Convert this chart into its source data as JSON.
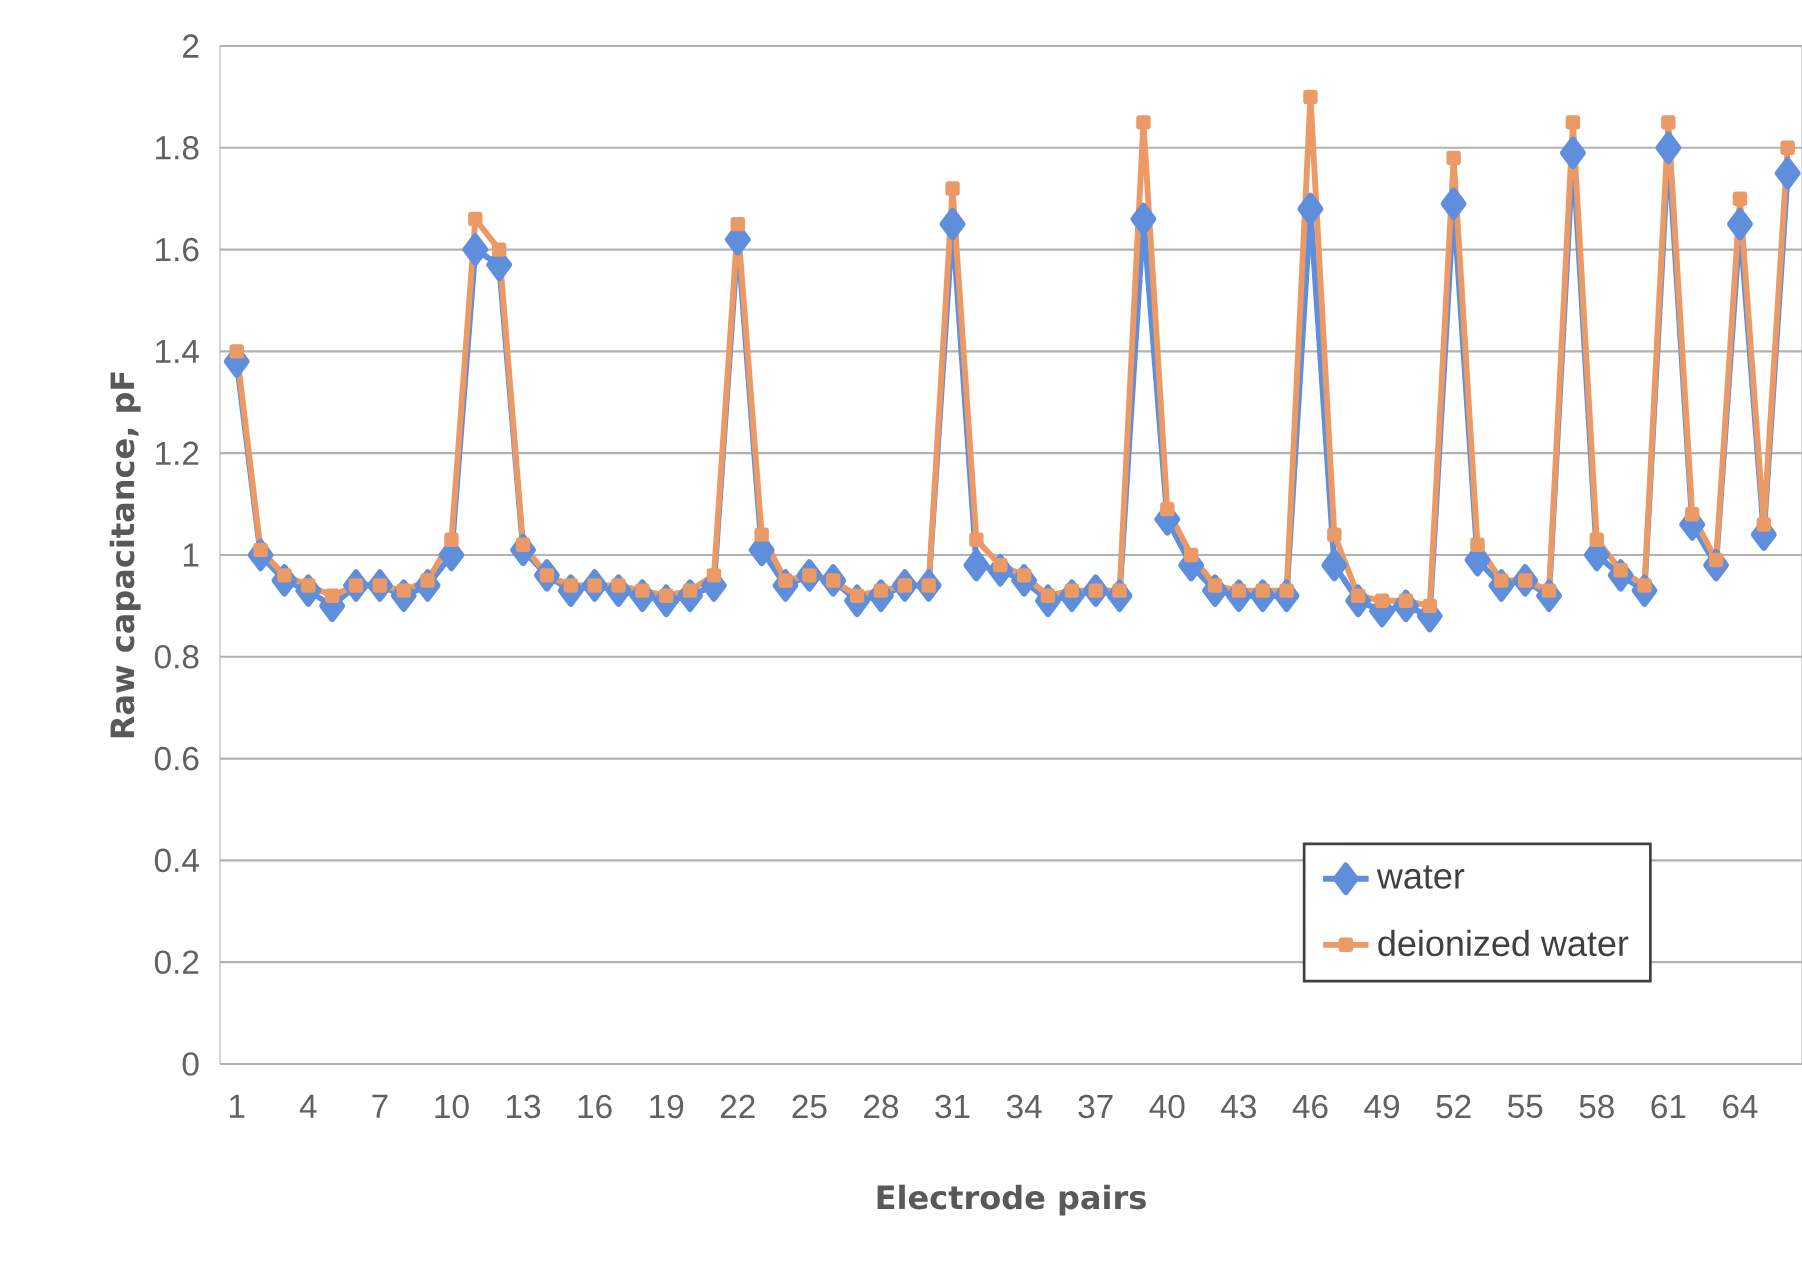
{
  "chart_data": {
    "type": "line",
    "xlabel": "Electrode pairs",
    "ylabel": "Raw capacitance, pF",
    "categories": [
      "1",
      null,
      null,
      "4",
      null,
      null,
      "7",
      null,
      null,
      "10",
      null,
      null,
      "13",
      null,
      null,
      "16",
      null,
      null,
      "19",
      null,
      null,
      "22",
      null,
      null,
      "25",
      null,
      null,
      "28",
      null,
      null,
      "31",
      null,
      null,
      "34",
      null,
      null,
      "37",
      null,
      null,
      "40",
      null,
      null,
      "43",
      null,
      null,
      "46",
      null,
      null,
      "49",
      null,
      null,
      "52",
      null,
      null,
      "55",
      null,
      null,
      "58",
      null,
      null,
      "61",
      null,
      null,
      "64",
      null,
      null
    ],
    "series": [
      {
        "name": "water",
        "color": "#5f8fdc",
        "marker": "diamond",
        "values": [
          1.38,
          1.0,
          0.95,
          0.93,
          0.9,
          0.94,
          0.94,
          0.92,
          0.94,
          1.0,
          1.6,
          1.57,
          1.01,
          0.96,
          0.93,
          0.94,
          0.93,
          0.92,
          0.91,
          0.92,
          0.94,
          1.62,
          1.01,
          0.94,
          0.96,
          0.95,
          0.91,
          0.92,
          0.94,
          0.94,
          1.65,
          0.98,
          0.97,
          0.95,
          0.91,
          0.92,
          0.93,
          0.92,
          1.66,
          1.07,
          0.98,
          0.93,
          0.92,
          0.92,
          0.92,
          1.68,
          0.98,
          0.91,
          0.89,
          0.9,
          0.88,
          1.69,
          0.99,
          0.94,
          0.95,
          0.92,
          1.79,
          1.0,
          0.96,
          0.93,
          1.8,
          1.06,
          0.98,
          1.65,
          1.04,
          1.75
        ]
      },
      {
        "name": "deionized water",
        "color": "#eb9a66",
        "marker": "square",
        "values": [
          1.4,
          1.01,
          0.96,
          0.94,
          0.92,
          0.94,
          0.94,
          0.93,
          0.95,
          1.03,
          1.66,
          1.6,
          1.02,
          0.96,
          0.94,
          0.94,
          0.94,
          0.93,
          0.92,
          0.93,
          0.96,
          1.65,
          1.04,
          0.95,
          0.96,
          0.95,
          0.92,
          0.93,
          0.94,
          0.94,
          1.72,
          1.03,
          0.98,
          0.96,
          0.92,
          0.93,
          0.93,
          0.93,
          1.85,
          1.09,
          1.0,
          0.94,
          0.93,
          0.93,
          0.93,
          1.9,
          1.04,
          0.92,
          0.91,
          0.91,
          0.9,
          1.78,
          1.02,
          0.95,
          0.95,
          0.93,
          1.85,
          1.03,
          0.97,
          0.94,
          1.85,
          1.08,
          0.99,
          1.7,
          1.06,
          1.8
        ]
      }
    ],
    "ylim": [
      0,
      2
    ],
    "yticks": [
      0,
      0.2,
      0.4,
      0.6,
      0.8,
      1,
      1.2,
      1.4,
      1.6,
      1.8,
      2
    ],
    "grid": "y",
    "legend": "bottom right",
    "line_style": "solid"
  }
}
